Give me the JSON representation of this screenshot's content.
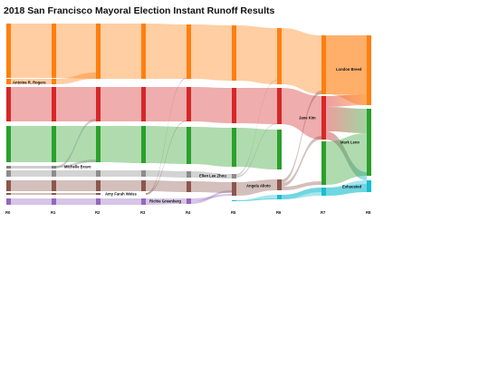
{
  "title": "2018 San Francisco Mayoral Election Instant Runoff Results",
  "rounds": [
    "R0",
    "R1",
    "R2",
    "R3",
    "R4",
    "R5",
    "R6",
    "R7",
    "R8"
  ],
  "colors": {
    "breed": "#ff7f0e",
    "kim": "#d62728",
    "leno": "#2ca02c",
    "bravo": "#7f7f7f",
    "weiss": "#8c564b",
    "greenberg": "#9467bd",
    "zhou": "#8c8c8c",
    "alioto": "#8c564b",
    "exhausted": "#17becf",
    "rogers": "#ff7f0e"
  },
  "labels": {
    "rogers": "Antoine R. Rogers",
    "bravo": "Michelle Bravo",
    "weiss": "Amy Farah Weiss",
    "greenberg": "Richie Greenberg",
    "zhou": "Ellen Lee Zhou",
    "alioto": "Angela Alioto",
    "kim": "Jane Kim",
    "breed": "London Breed",
    "leno": "Mark Leno",
    "exhausted": "Exhausted"
  }
}
